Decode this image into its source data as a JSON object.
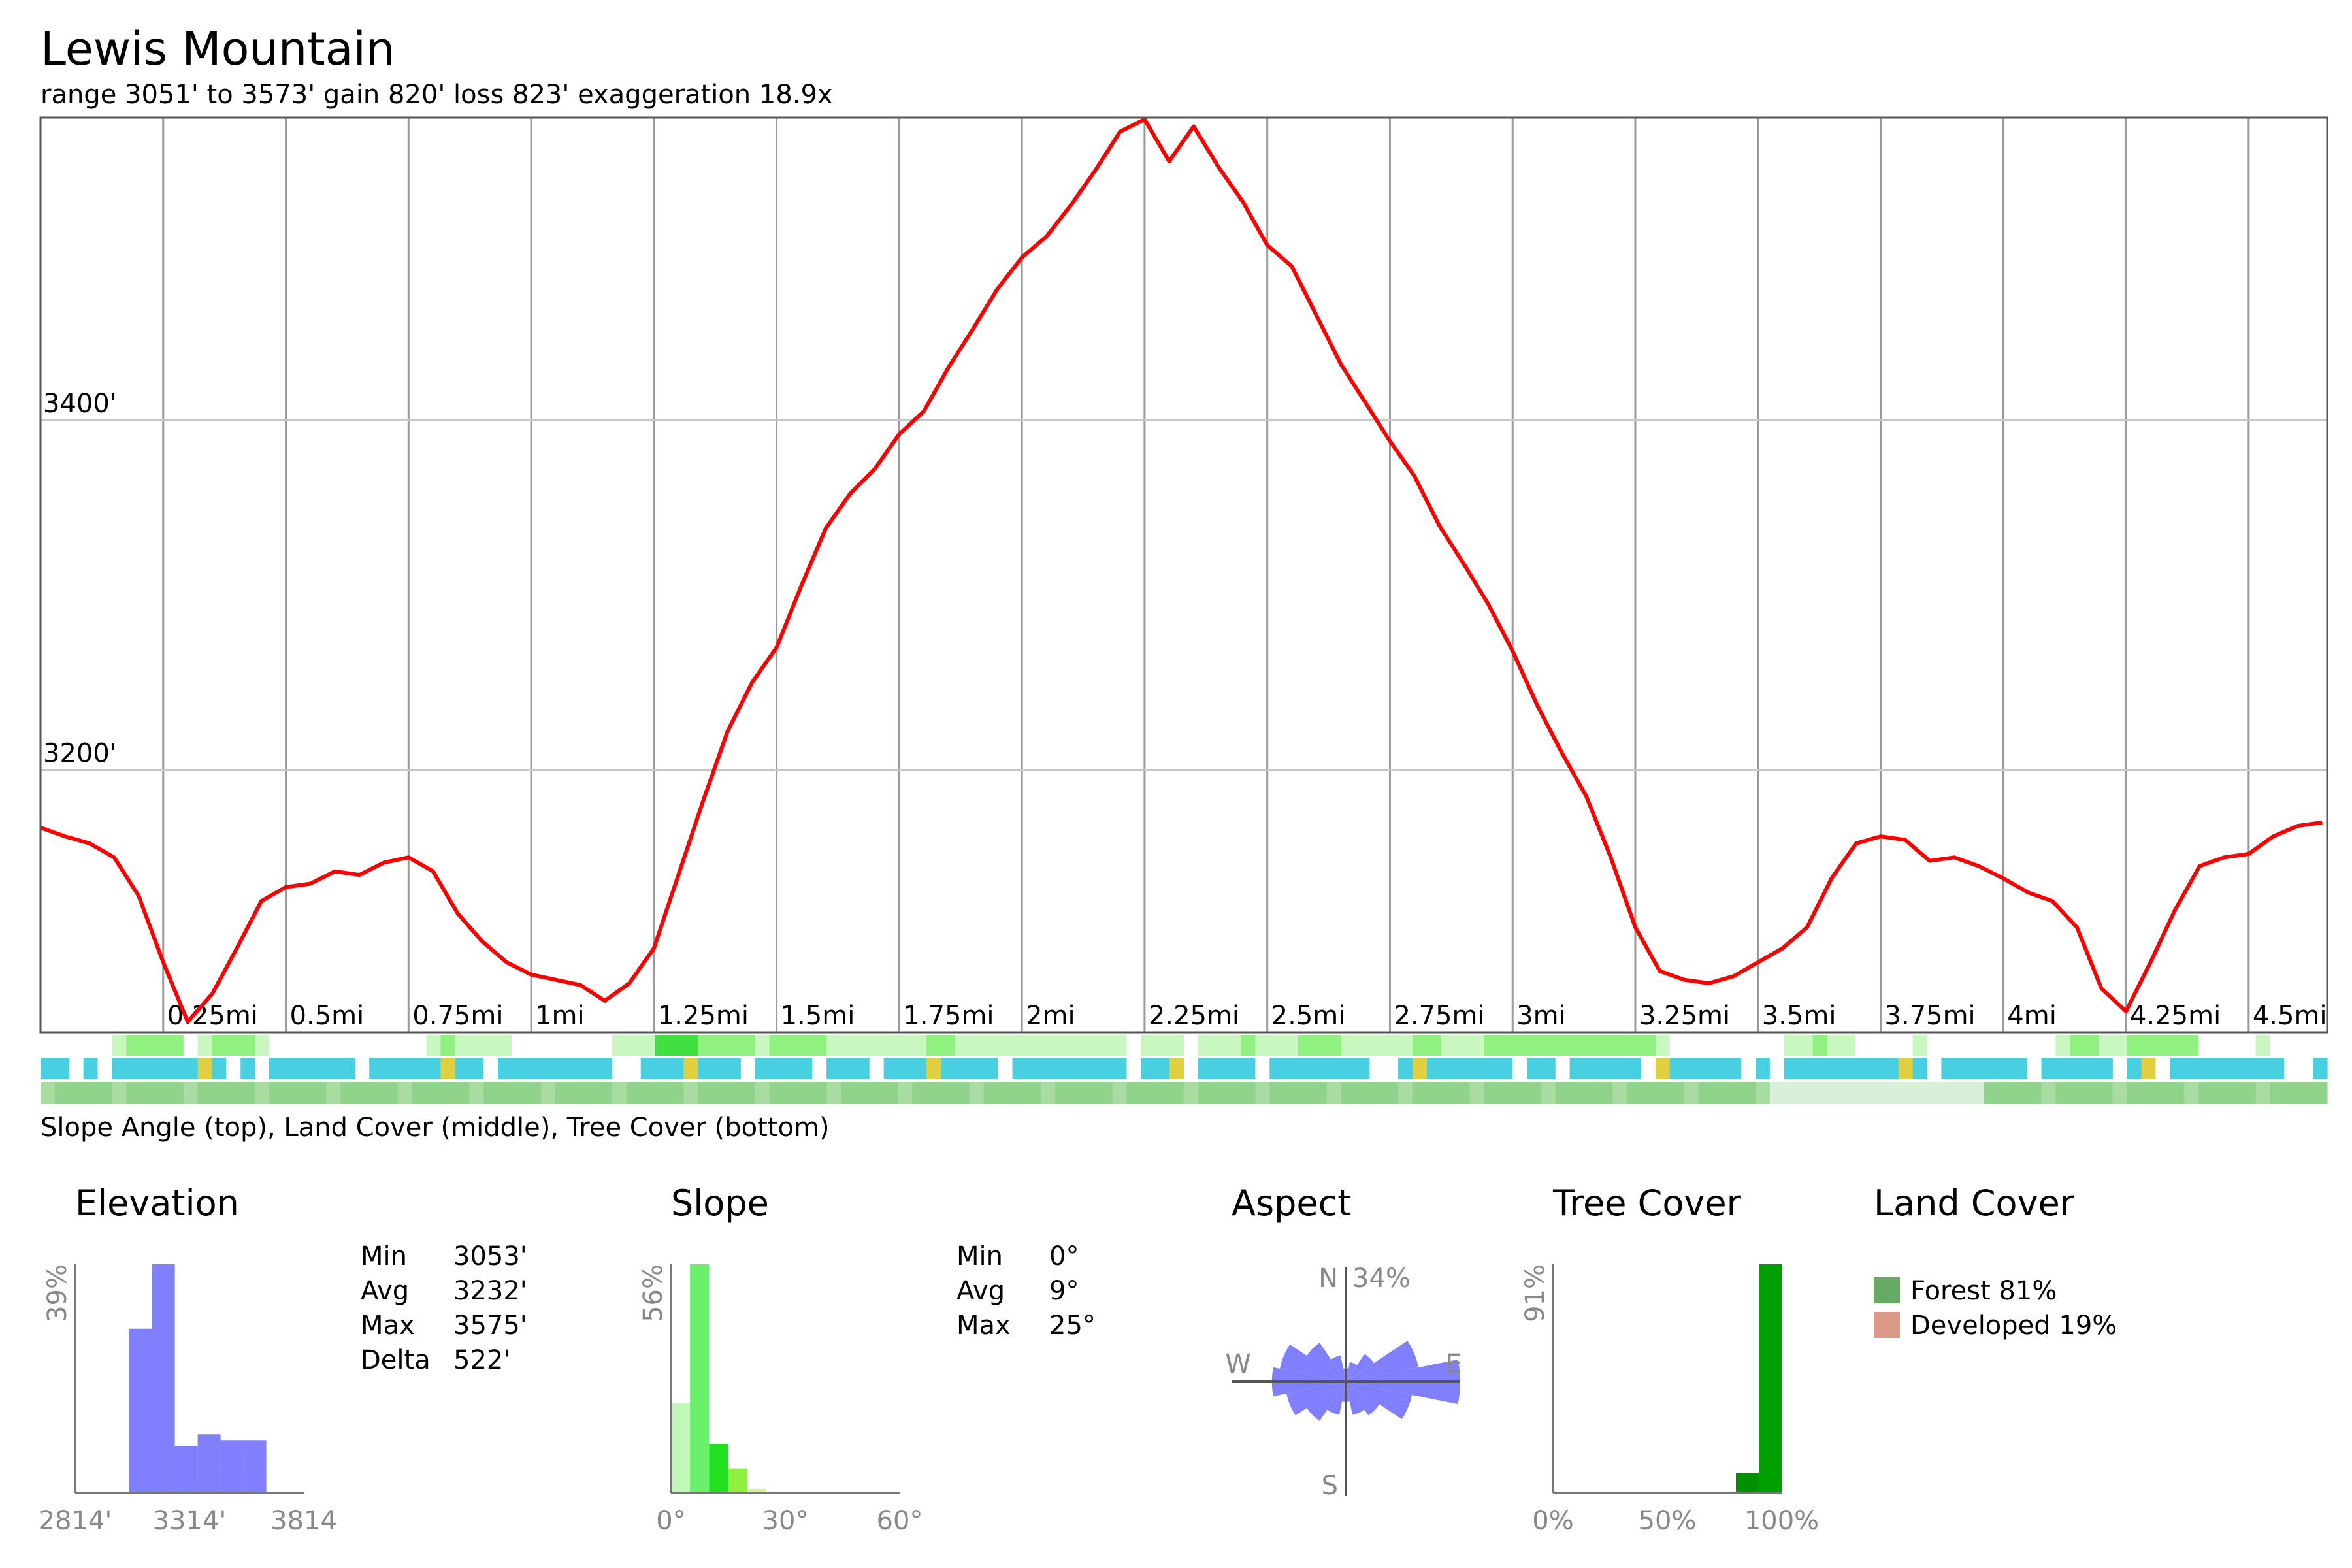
{
  "title": "Lewis Mountain",
  "subtitle": "range 3051' to 3573'  gain 820'  loss 823'  exaggeration 18.9x",
  "legend_caption": "Slope Angle (top), Land Cover (middle), Tree Cover (bottom)",
  "chart_data": [
    {
      "type": "line",
      "name": "elevation-profile",
      "title": "Lewis Mountain",
      "x_unit": "mi",
      "xlim": [
        0,
        4.66
      ],
      "ylim": [
        3050,
        3573
      ],
      "x_ticks": [
        {
          "value": 0.25,
          "label": "0.25mi"
        },
        {
          "value": 0.5,
          "label": "0.5mi"
        },
        {
          "value": 0.75,
          "label": "0.75mi"
        },
        {
          "value": 1.0,
          "label": "1mi"
        },
        {
          "value": 1.25,
          "label": "1.25mi"
        },
        {
          "value": 1.5,
          "label": "1.5mi"
        },
        {
          "value": 1.75,
          "label": "1.75mi"
        },
        {
          "value": 2.0,
          "label": "2mi"
        },
        {
          "value": 2.25,
          "label": "2.25mi"
        },
        {
          "value": 2.5,
          "label": "2.5mi"
        },
        {
          "value": 2.75,
          "label": "2.75mi"
        },
        {
          "value": 3.0,
          "label": "3mi"
        },
        {
          "value": 3.25,
          "label": "3.25mi"
        },
        {
          "value": 3.5,
          "label": "3.5mi"
        },
        {
          "value": 3.75,
          "label": "3.75mi"
        },
        {
          "value": 4.0,
          "label": "4mi"
        },
        {
          "value": 4.25,
          "label": "4.25mi"
        },
        {
          "value": 4.5,
          "label": "4.5mi"
        }
      ],
      "y_ticks": [
        {
          "value": 3200,
          "label": "3200'"
        },
        {
          "value": 3400,
          "label": "3400'"
        }
      ],
      "grid": true,
      "line_color": "#ff0000",
      "x": [
        0.0,
        0.05,
        0.1,
        0.15,
        0.2,
        0.25,
        0.3,
        0.35,
        0.4,
        0.45,
        0.5,
        0.55,
        0.6,
        0.65,
        0.7,
        0.75,
        0.8,
        0.85,
        0.9,
        0.95,
        1.0,
        1.05,
        1.1,
        1.15,
        1.2,
        1.25,
        1.3,
        1.35,
        1.4,
        1.45,
        1.5,
        1.55,
        1.6,
        1.65,
        1.7,
        1.75,
        1.8,
        1.85,
        1.9,
        1.95,
        2.0,
        2.05,
        2.1,
        2.15,
        2.2,
        2.25,
        2.3,
        2.35,
        2.4,
        2.45,
        2.5,
        2.55,
        2.6,
        2.65,
        2.7,
        2.75,
        2.8,
        2.85,
        2.9,
        2.95,
        3.0,
        3.05,
        3.1,
        3.15,
        3.2,
        3.25,
        3.3,
        3.35,
        3.4,
        3.45,
        3.5,
        3.55,
        3.6,
        3.65,
        3.7,
        3.75,
        3.8,
        3.85,
        3.9,
        3.95,
        4.0,
        4.05,
        4.1,
        4.15,
        4.2,
        4.25,
        4.3,
        4.35,
        4.4,
        4.45,
        4.5,
        4.55,
        4.6,
        4.65
      ],
      "y": [
        3167,
        3162,
        3158,
        3150,
        3128,
        3090,
        3056,
        3072,
        3098,
        3125,
        3133,
        3135,
        3142,
        3140,
        3147,
        3150,
        3142,
        3118,
        3102,
        3090,
        3083,
        3080,
        3077,
        3068,
        3078,
        3098,
        3140,
        3182,
        3222,
        3250,
        3270,
        3305,
        3338,
        3358,
        3372,
        3392,
        3405,
        3430,
        3452,
        3475,
        3493,
        3505,
        3523,
        3543,
        3565,
        3572,
        3548,
        3568,
        3545,
        3525,
        3500,
        3488,
        3460,
        3432,
        3410,
        3388,
        3368,
        3340,
        3318,
        3295,
        3268,
        3237,
        3210,
        3185,
        3150,
        3110,
        3085,
        3080,
        3078,
        3082,
        3090,
        3098,
        3110,
        3138,
        3158,
        3162,
        3160,
        3148,
        3150,
        3145,
        3138,
        3130,
        3125,
        3110,
        3075,
        3062,
        3090,
        3120,
        3145,
        3150,
        3152,
        3162,
        3168,
        3170
      ],
      "strips": {
        "slope_colors": [
          "#ffffff",
          "#c8f8c0",
          "#90f080",
          "#40e040",
          "#00d000"
        ],
        "land_cover_colors": {
          "forest": "#49d0e0",
          "developed": "#ffffff",
          "other": "#e0d040"
        },
        "tree_cover_colors": [
          "#d8f0d8",
          "#a8dca0",
          "#8fd48a"
        ]
      }
    },
    {
      "type": "bar",
      "name": "elevation-histogram",
      "title": "Elevation",
      "color": "#8080ff",
      "x_tick_labels": [
        "2814'",
        "3314'",
        "3814"
      ],
      "xlim": [
        2814,
        3814
      ],
      "y_max_label": "39%",
      "bins": [
        {
          "x0": 3050,
          "x1": 3150,
          "value": 28
        },
        {
          "x0": 3150,
          "x1": 3250,
          "value": 39
        },
        {
          "x0": 3250,
          "x1": 3350,
          "value": 8
        },
        {
          "x0": 3350,
          "x1": 3450,
          "value": 10
        },
        {
          "x0": 3450,
          "x1": 3550,
          "value": 9
        },
        {
          "x0": 3550,
          "x1": 3650,
          "value": 9
        }
      ],
      "stats": [
        {
          "label": "Min",
          "value": "3053'"
        },
        {
          "label": "Avg",
          "value": "3232'"
        },
        {
          "label": "Max",
          "value": "3575'"
        },
        {
          "label": "Delta",
          "value": "522'"
        }
      ]
    },
    {
      "type": "bar",
      "name": "slope-histogram",
      "title": "Slope",
      "x_tick_labels": [
        "0°",
        "30°",
        "60°"
      ],
      "xlim": [
        0,
        60
      ],
      "y_max_label": "56%",
      "bins": [
        {
          "x0": 0,
          "x1": 5,
          "value": 22,
          "color": "#c0f8b8"
        },
        {
          "x0": 5,
          "x1": 10,
          "value": 56,
          "color": "#6cf06c"
        },
        {
          "x0": 10,
          "x1": 15,
          "value": 12,
          "color": "#20e020"
        },
        {
          "x0": 15,
          "x1": 20,
          "value": 6,
          "color": "#90f040"
        },
        {
          "x0": 20,
          "x1": 25,
          "value": 1,
          "color": "#d8f0a0"
        }
      ],
      "stats": [
        {
          "label": "Min",
          "value": "0°"
        },
        {
          "label": "Avg",
          "value": "9°"
        },
        {
          "label": "Max",
          "value": "25°"
        }
      ]
    },
    {
      "type": "pie",
      "name": "aspect-rose",
      "title": "Aspect",
      "color": "#8080ff",
      "directions": [
        "N",
        "W",
        "E",
        "S"
      ],
      "max_label": "34%",
      "sectors_deg": [
        0,
        22.5,
        45,
        67.5,
        90,
        112.5,
        135,
        157.5,
        180,
        202.5,
        225,
        247.5,
        270,
        292.5,
        315,
        337.5
      ],
      "values": [
        4,
        6,
        10,
        22,
        34,
        20,
        12,
        10,
        6,
        10,
        14,
        18,
        22,
        20,
        14,
        8
      ]
    },
    {
      "type": "bar",
      "name": "tree-cover-histogram",
      "title": "Tree Cover",
      "x_tick_labels": [
        "0%",
        "50%",
        "100%"
      ],
      "xlim": [
        0,
        100
      ],
      "y_max_label": "91%",
      "bins": [
        {
          "x0": 80,
          "x1": 90,
          "value": 8,
          "color": "#009000"
        },
        {
          "x0": 90,
          "x1": 100,
          "value": 91,
          "color": "#00a000"
        }
      ]
    },
    {
      "type": "pie",
      "name": "land-cover",
      "title": "Land Cover",
      "slices": [
        {
          "label": "Forest 81%",
          "value": 81,
          "color": "#66aa66"
        },
        {
          "label": "Developed 19%",
          "value": 19,
          "color": "#dd9988"
        }
      ]
    }
  ]
}
